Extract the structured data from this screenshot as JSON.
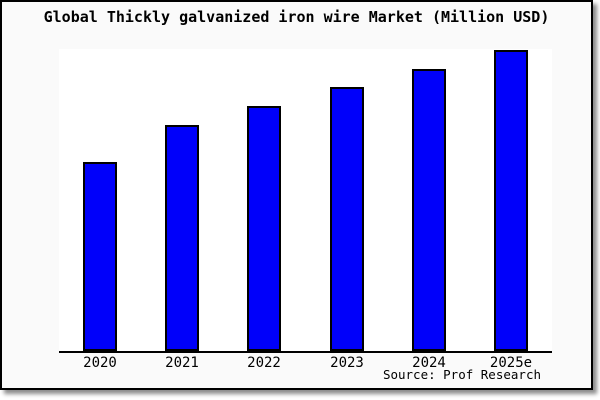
{
  "page": {
    "background": "#ffffff"
  },
  "frame": {
    "background": "#fafafa",
    "border_color": "#000000"
  },
  "chart_data": {
    "type": "bar",
    "title": "Global Thickly galvanized iron wire Market (Million USD)",
    "categories": [
      "2020",
      "2021",
      "2022",
      "2023",
      "2024",
      "2025e"
    ],
    "values": [
      62.8,
      75.1,
      81.4,
      87.7,
      93.7,
      100
    ],
    "value_note": "no y-axis or data labels shown; values are relative bar heights with tallest bar (2025e) = 100",
    "units": "Million USD",
    "xlabel": "",
    "ylabel": "",
    "grid": false,
    "legend": "none",
    "bar_color": "#0000fa",
    "bar_border_color": "#000000",
    "plot_background": "#ffffff",
    "axis_color": "#000000",
    "source": "Source: Prof Research"
  }
}
